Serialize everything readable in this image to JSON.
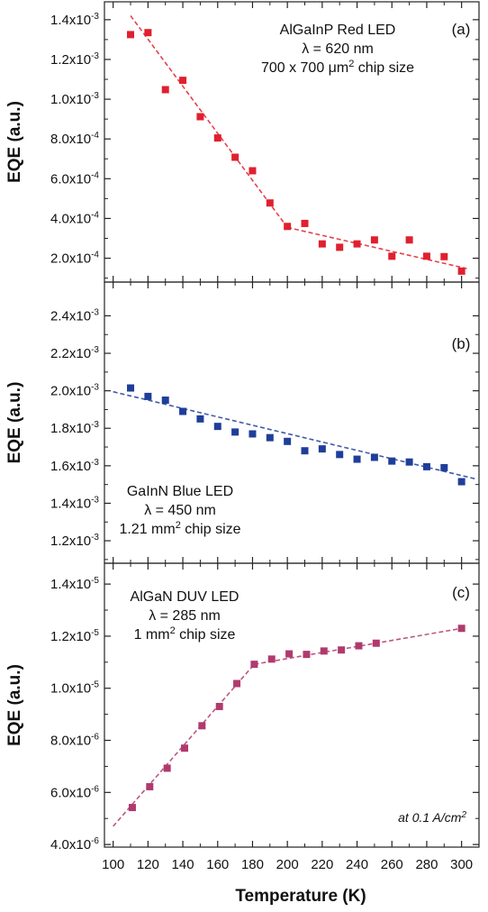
{
  "chart_data": [
    {
      "type": "scatter",
      "panel": "(a)",
      "annotation": [
        "AlGaInP Red LED",
        "λ = 620 nm",
        "700 x 700 μm² chip size"
      ],
      "ylabel": "EQE (a.u.)",
      "ylim": [
        8e-05,
        0.00149
      ],
      "yticks": [
        0.0002,
        0.0004,
        0.0006,
        0.0008,
        0.001,
        0.0012,
        0.0014
      ],
      "ytick_labels": [
        {
          "m": "2.0x10",
          "e": "-4"
        },
        {
          "m": "4.0x10",
          "e": "-4"
        },
        {
          "m": "6.0x10",
          "e": "-4"
        },
        {
          "m": "8.0x10",
          "e": "-4"
        },
        {
          "m": "1.0x10",
          "e": "-3"
        },
        {
          "m": "1.2x10",
          "e": "-3"
        },
        {
          "m": "1.4x10",
          "e": "-3"
        }
      ],
      "color": "#e0202e",
      "points": [
        [
          110,
          0.001325
        ],
        [
          120,
          0.001335
        ],
        [
          130,
          0.001048
        ],
        [
          140,
          0.001095
        ],
        [
          150,
          0.000912
        ],
        [
          160,
          0.000805
        ],
        [
          170,
          0.000708
        ],
        [
          180,
          0.00064
        ],
        [
          190,
          0.000478
        ],
        [
          200,
          0.00036
        ],
        [
          210,
          0.000375
        ],
        [
          220,
          0.000272
        ],
        [
          230,
          0.000255
        ],
        [
          240,
          0.000272
        ],
        [
          250,
          0.000292
        ],
        [
          260,
          0.00021
        ],
        [
          270,
          0.000292
        ],
        [
          280,
          0.00021
        ],
        [
          290,
          0.000208
        ],
        [
          300,
          0.000135
        ]
      ],
      "fit_lines": [
        [
          [
            110,
            0.00142
          ],
          [
            200,
            0.000355
          ]
        ],
        [
          [
            200,
            0.000355
          ],
          [
            303,
            0.000148
          ]
        ]
      ]
    },
    {
      "type": "scatter",
      "panel": "(b)",
      "annotation": [
        "GaInN Blue LED",
        "λ = 450 nm",
        "1.21 mm² chip size"
      ],
      "ylabel": "EQE (a.u.)",
      "ylim": [
        0.00108,
        0.00258
      ],
      "yticks": [
        0.0012,
        0.0014,
        0.0016,
        0.0018,
        0.002,
        0.0022,
        0.0024
      ],
      "ytick_labels": [
        {
          "m": "1.2x10",
          "e": "-3"
        },
        {
          "m": "1.4x10",
          "e": "-3"
        },
        {
          "m": "1.6x10",
          "e": "-3"
        },
        {
          "m": "1.8x10",
          "e": "-3"
        },
        {
          "m": "2.0x10",
          "e": "-3"
        },
        {
          "m": "2.2x10",
          "e": "-3"
        },
        {
          "m": "2.4x10",
          "e": "-3"
        }
      ],
      "color": "#1f3e9a",
      "points": [
        [
          110,
          0.002015
        ],
        [
          120,
          0.00197
        ],
        [
          130,
          0.00195
        ],
        [
          140,
          0.00189
        ],
        [
          150,
          0.00185
        ],
        [
          160,
          0.00181
        ],
        [
          170,
          0.00178
        ],
        [
          180,
          0.00177
        ],
        [
          190,
          0.00175
        ],
        [
          200,
          0.00173
        ],
        [
          210,
          0.00168
        ],
        [
          220,
          0.00169
        ],
        [
          230,
          0.00166
        ],
        [
          240,
          0.001635
        ],
        [
          250,
          0.001645
        ],
        [
          260,
          0.001625
        ],
        [
          270,
          0.00162
        ],
        [
          280,
          0.001595
        ],
        [
          290,
          0.00159
        ],
        [
          300,
          0.001515
        ]
      ],
      "fit_lines": [
        [
          [
            100,
            0.001995
          ],
          [
            308,
            0.00153
          ]
        ]
      ]
    },
    {
      "type": "scatter",
      "panel": "(c)",
      "annotation": [
        "AlGaN DUV LED",
        "λ = 285 nm",
        "1 mm² chip size"
      ],
      "note": "at 0.1 A/cm²",
      "ylabel": "EQE (a.u.)",
      "xlabel": "Temperature (K)",
      "ylim": [
        3.9e-06,
        1.48e-05
      ],
      "yticks": [
        4e-06,
        6e-06,
        8e-06,
        1e-05,
        1.2e-05,
        1.4e-05
      ],
      "ytick_labels": [
        {
          "m": "4.0x10",
          "e": "-6"
        },
        {
          "m": "6.0x10",
          "e": "-6"
        },
        {
          "m": "8.0x10",
          "e": "-6"
        },
        {
          "m": "1.0x10",
          "e": "-5"
        },
        {
          "m": "1.2x10",
          "e": "-5"
        },
        {
          "m": "1.4x10",
          "e": "-5"
        }
      ],
      "color": "#b03a6e",
      "points": [
        [
          111,
          5.42e-06
        ],
        [
          121,
          6.22e-06
        ],
        [
          131,
          6.93e-06
        ],
        [
          141,
          7.7e-06
        ],
        [
          151,
          8.56e-06
        ],
        [
          161,
          9.3e-06
        ],
        [
          171,
          1.018e-05
        ],
        [
          181,
          1.092e-05
        ],
        [
          191,
          1.112e-05
        ],
        [
          201,
          1.132e-05
        ],
        [
          211,
          1.13e-05
        ],
        [
          221,
          1.143e-05
        ],
        [
          231,
          1.147e-05
        ],
        [
          241,
          1.163e-05
        ],
        [
          251,
          1.173e-05
        ],
        [
          300,
          1.23e-05
        ]
      ],
      "fit_lines": [
        [
          [
            100,
            4.7e-06
          ],
          [
            181,
            1.092e-05
          ]
        ],
        [
          [
            181,
            1.092e-05
          ],
          [
            300,
            1.23e-05
          ]
        ]
      ]
    }
  ],
  "x_axis": {
    "xlim": [
      95,
      310
    ],
    "ticks": [
      100,
      120,
      140,
      160,
      180,
      200,
      220,
      240,
      260,
      280,
      300
    ],
    "label": "Temperature (K)"
  }
}
